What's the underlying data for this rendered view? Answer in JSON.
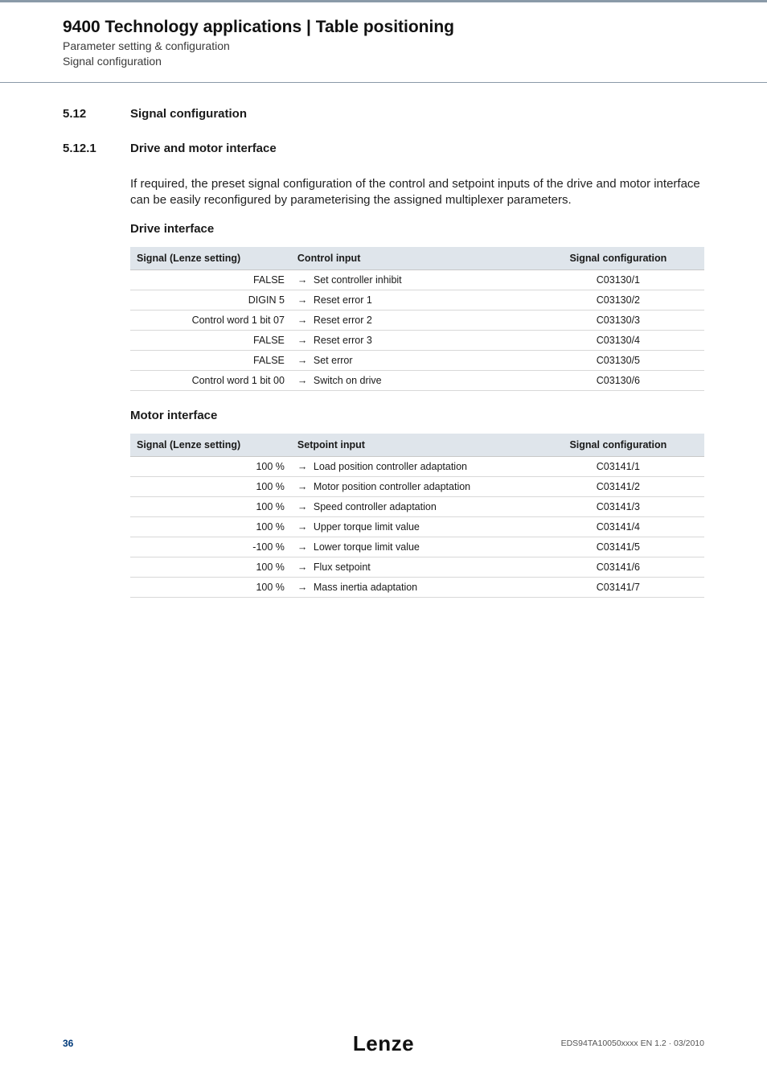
{
  "header": {
    "title": "9400 Technology applications | Table positioning",
    "sub1": "Parameter setting & configuration",
    "sub2": "Signal configuration"
  },
  "sections": {
    "s1": {
      "num": "5.12",
      "title": "Signal configuration"
    },
    "s2": {
      "num": "5.12.1",
      "title": "Drive and motor interface"
    }
  },
  "intro": "If required, the preset signal configuration of the control and setpoint inputs of the drive and motor interface can be easily reconfigured by parameterising the assigned multiplexer parameters.",
  "drive": {
    "heading": "Drive interface",
    "headers": {
      "c1": "Signal (Lenze setting)",
      "c2": "Control input",
      "c3": "Signal configuration"
    },
    "rows": [
      {
        "sig": "FALSE",
        "ctrl": "Set controller inhibit",
        "conf": "C03130/1"
      },
      {
        "sig": "DIGIN 5",
        "ctrl": "Reset error 1",
        "conf": "C03130/2"
      },
      {
        "sig": "Control word 1 bit 07",
        "ctrl": "Reset error 2",
        "conf": "C03130/3"
      },
      {
        "sig": "FALSE",
        "ctrl": "Reset error 3",
        "conf": "C03130/4"
      },
      {
        "sig": "FALSE",
        "ctrl": "Set error",
        "conf": "C03130/5"
      },
      {
        "sig": "Control word 1 bit 00",
        "ctrl": "Switch on drive",
        "conf": "C03130/6"
      }
    ]
  },
  "motor": {
    "heading": "Motor interface",
    "headers": {
      "c1": "Signal (Lenze setting)",
      "c2": "Setpoint input",
      "c3": "Signal configuration"
    },
    "rows": [
      {
        "sig": "100 %",
        "ctrl": "Load position controller adaptation",
        "conf": "C03141/1"
      },
      {
        "sig": "100 %",
        "ctrl": "Motor position controller adaptation",
        "conf": "C03141/2"
      },
      {
        "sig": "100 %",
        "ctrl": "Speed controller adaptation",
        "conf": "C03141/3"
      },
      {
        "sig": "100 %",
        "ctrl": "Upper torque limit value",
        "conf": "C03141/4"
      },
      {
        "sig": "-100 %",
        "ctrl": "Lower torque limit value",
        "conf": "C03141/5"
      },
      {
        "sig": "100 %",
        "ctrl": "Flux setpoint",
        "conf": "C03141/6"
      },
      {
        "sig": "100 %",
        "ctrl": "Mass inertia adaptation",
        "conf": "C03141/7"
      }
    ]
  },
  "footer": {
    "page": "36",
    "logo": "Lenze",
    "docid": "EDS94TA10050xxxx EN 1.2 · 03/2010"
  },
  "style": {
    "header_bg": "#dfe5eb",
    "border": "#d8d8d8",
    "accent_line": "#8a9aa8",
    "page_num_color": "#003a7a"
  }
}
